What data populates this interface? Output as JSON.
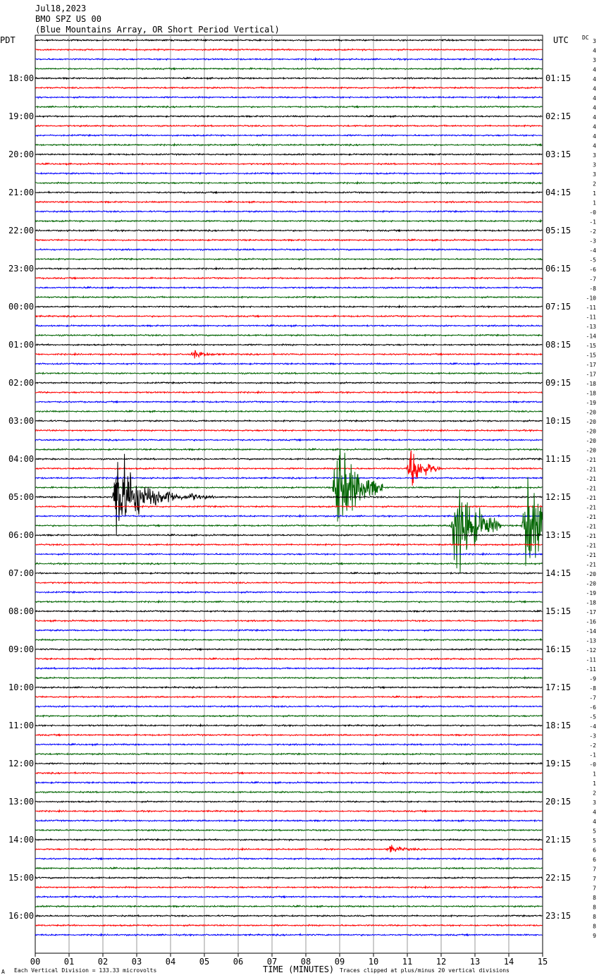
{
  "header": {
    "date": "Jul18,2023",
    "station": "BMO SPZ US 00",
    "description": "(Blue Mountains Array, OR Short Period Vertical)"
  },
  "left_timezone": "PDT",
  "right_timezone": "UTC",
  "dc_header": "DC",
  "footer": {
    "scale": "Each Vertical Division =  133.33 microvolts",
    "xlabel": "TIME (MINUTES)",
    "clip_note": "Traces clipped at plus/minus 20 vertical divisions",
    "mark": "A"
  },
  "chart_data": {
    "type": "line",
    "title": "BMO SPZ US 00",
    "xlabel": "TIME (MINUTES)",
    "xlim": [
      0,
      15
    ],
    "x_ticks": [
      "00",
      "01",
      "02",
      "03",
      "04",
      "05",
      "06",
      "07",
      "08",
      "09",
      "10",
      "11",
      "12",
      "13",
      "14",
      "15"
    ],
    "trace_colors": [
      "#000000",
      "#ff0000",
      "#0000ff",
      "#006400"
    ],
    "traces_per_hour": 4,
    "minutes_per_trace": 15,
    "pdt_labels": [
      "18:00",
      "19:00",
      "20:00",
      "21:00",
      "22:00",
      "23:00",
      "00:00",
      "01:00",
      "02:00",
      "03:00",
      "04:00",
      "05:00",
      "06:00",
      "07:00",
      "08:00",
      "09:00",
      "10:00",
      "11:00",
      "12:00",
      "13:00",
      "14:00",
      "15:00",
      "16:00"
    ],
    "utc_labels": [
      "01:15",
      "02:15",
      "03:15",
      "04:15",
      "05:15",
      "06:15",
      "07:15",
      "08:15",
      "09:15",
      "10:15",
      "11:15",
      "12:15",
      "13:15",
      "14:15",
      "15:15",
      "16:15",
      "17:15",
      "18:15",
      "19:15",
      "20:15",
      "21:15",
      "22:15",
      "23:15"
    ],
    "dc_values": [
      "3",
      "4",
      "3",
      "4",
      "4",
      "4",
      "4",
      "4",
      "4",
      "4",
      "4",
      "4",
      "3",
      "3",
      "3",
      "2",
      "1",
      "1",
      "-0",
      "-1",
      "-2",
      "-3",
      "-4",
      "-5",
      "-6",
      "-7",
      "-8",
      "-10",
      "-11",
      "-11",
      "-13",
      "-14",
      "-15",
      "-15",
      "-17",
      "-17",
      "-18",
      "-18",
      "-19",
      "-20",
      "-20",
      "-20",
      "-20",
      "-20",
      "-21",
      "-21",
      "-21",
      "-21",
      "-21",
      "-21",
      "-21",
      "-21",
      "-21",
      "-21",
      "-21",
      "-21",
      "-20",
      "-20",
      "-19",
      "-18",
      "-17",
      "-16",
      "-14",
      "-13",
      "-12",
      "-11",
      "-11",
      "-9",
      "-8",
      "-7",
      "-6",
      "-5",
      "-4",
      "-3",
      "-2",
      "-1",
      "-0",
      "1",
      "1",
      "2",
      "3",
      "4",
      "4",
      "5",
      "5",
      "6",
      "6",
      "7",
      "7",
      "7",
      "8",
      "8",
      "8",
      "8",
      "9"
    ],
    "events": [
      {
        "trace": 33,
        "minute": 4.7,
        "amplitude": "small"
      },
      {
        "trace": 48,
        "minute": 2.4,
        "amplitude": "clipped"
      },
      {
        "trace": 48,
        "minute": 3.9,
        "amplitude": "moderate"
      },
      {
        "trace": 48,
        "minute": 4.6,
        "amplitude": "small"
      },
      {
        "trace": 47,
        "minute": 8.9,
        "amplitude": "clipped"
      },
      {
        "trace": 45,
        "minute": 11.1,
        "amplitude": "large"
      },
      {
        "trace": 51,
        "minute": 12.4,
        "amplitude": "clipped"
      },
      {
        "trace": 51,
        "minute": 14.5,
        "amplitude": "clipped"
      },
      {
        "trace": 85,
        "minute": 10.5,
        "amplitude": "small"
      }
    ]
  }
}
